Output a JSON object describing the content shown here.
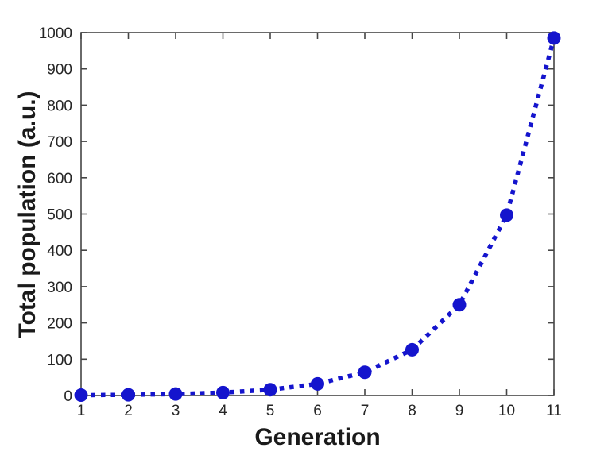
{
  "figure": {
    "background": "#ffffff"
  },
  "chart_data": {
    "type": "line",
    "title": "",
    "xlabel": "Generation",
    "ylabel": "Total population (a.u.)",
    "x": [
      1,
      2,
      3,
      4,
      5,
      6,
      7,
      8,
      9,
      10,
      11
    ],
    "values": [
      1,
      2,
      4,
      8,
      16,
      32,
      64,
      126,
      250,
      497,
      985
    ],
    "xlim": [
      1,
      11
    ],
    "ylim": [
      0,
      1000
    ],
    "xticks": [
      1,
      2,
      3,
      4,
      5,
      6,
      7,
      8,
      9,
      10,
      11
    ],
    "yticks": [
      0,
      100,
      200,
      300,
      400,
      500,
      600,
      700,
      800,
      900,
      1000
    ],
    "grid": false,
    "legend": null,
    "line_style": "dotted",
    "marker": "circle",
    "line_color": "#1414CD",
    "marker_color": "#1414CD",
    "axis_color": "#454545",
    "tick_label_color": "#262626",
    "label_color": "#1a1a1a"
  }
}
